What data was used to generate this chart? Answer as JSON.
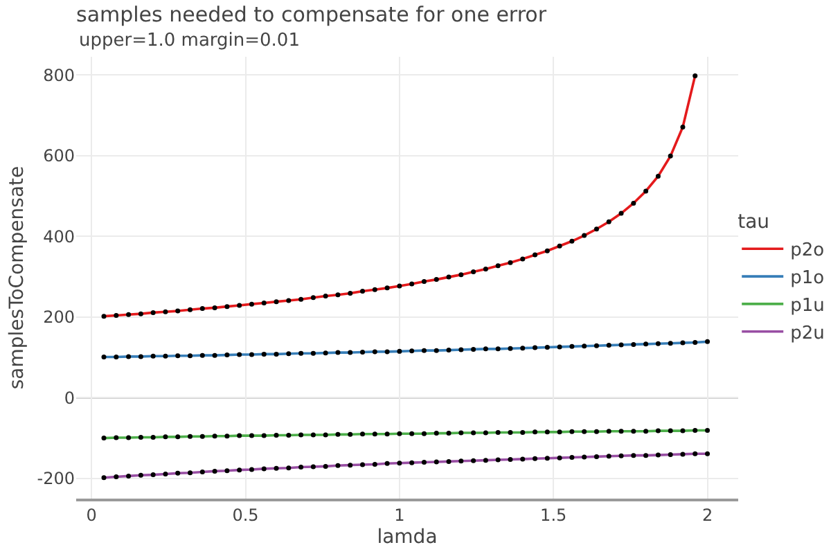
{
  "chart_data": {
    "type": "line",
    "title": "samples needed to compensate for one error",
    "subtitle": "upper=1.0 margin=0.01",
    "xlabel": "lamda",
    "ylabel": "samplesToCompensate",
    "legend_title": "tau",
    "x": [
      0.04,
      0.08,
      0.12,
      0.16,
      0.2,
      0.24,
      0.28,
      0.32,
      0.36,
      0.4,
      0.44,
      0.48,
      0.52,
      0.56,
      0.6,
      0.64,
      0.68,
      0.72,
      0.76,
      0.8,
      0.84,
      0.88,
      0.92,
      0.96,
      1,
      1.04,
      1.08,
      1.12,
      1.16,
      1.2,
      1.24,
      1.28,
      1.32,
      1.36,
      1.4,
      1.44,
      1.48,
      1.52,
      1.56,
      1.6,
      1.64,
      1.68,
      1.72,
      1.76,
      1.8,
      1.84,
      1.88,
      1.92,
      1.96,
      2
    ],
    "series": [
      {
        "name": "p2o",
        "color": "#e41a1c",
        "values": [
          202,
          204,
          206,
          208,
          211,
          213,
          215,
          218,
          221,
          223,
          226,
          229,
          232,
          235,
          238,
          241,
          244,
          248,
          252,
          255,
          259,
          264,
          268,
          272,
          277,
          282,
          288,
          293,
          299,
          305,
          312,
          319,
          327,
          335,
          344,
          354,
          364,
          376,
          388,
          402,
          418,
          436,
          457,
          482,
          512,
          549,
          599,
          671,
          798,
          null
        ]
      },
      {
        "name": "p1o",
        "color": "#377eb8",
        "values": [
          101,
          101,
          102,
          102,
          103,
          103,
          104,
          104,
          105,
          105,
          106,
          107,
          107,
          108,
          108,
          109,
          110,
          110,
          111,
          112,
          112,
          113,
          114,
          114,
          115,
          116,
          117,
          117,
          118,
          119,
          120,
          121,
          121,
          122,
          123,
          124,
          125,
          126,
          127,
          128,
          129,
          130,
          131,
          132,
          133,
          134,
          135,
          136,
          137,
          139
        ]
      },
      {
        "name": "p1u",
        "color": "#4daf4a",
        "values": [
          -100,
          -99,
          -99,
          -98,
          -98,
          -97,
          -97,
          -96,
          -96,
          -95,
          -95,
          -94,
          -94,
          -94,
          -93,
          -93,
          -92,
          -92,
          -92,
          -91,
          -91,
          -90,
          -90,
          -90,
          -89,
          -89,
          -89,
          -88,
          -88,
          -87,
          -87,
          -87,
          -86,
          -86,
          -86,
          -85,
          -85,
          -85,
          -84,
          -84,
          -84,
          -83,
          -83,
          -83,
          -83,
          -82,
          -82,
          -82,
          -81,
          -81
        ]
      },
      {
        "name": "p2u",
        "color": "#984ea3",
        "values": [
          -198,
          -196,
          -194,
          -192,
          -191,
          -189,
          -187,
          -186,
          -184,
          -182,
          -181,
          -179,
          -178,
          -176,
          -175,
          -174,
          -172,
          -171,
          -170,
          -168,
          -167,
          -166,
          -165,
          -163,
          -162,
          -161,
          -160,
          -159,
          -158,
          -157,
          -156,
          -155,
          -154,
          -153,
          -152,
          -151,
          -150,
          -149,
          -148,
          -147,
          -146,
          -145,
          -144,
          -143,
          -143,
          -142,
          -141,
          -140,
          -139,
          -139
        ]
      }
    ],
    "xlim": [
      -0.05,
      2.1
    ],
    "ylim": [
      -250,
      845
    ],
    "xticks": [
      0,
      0.5,
      1,
      1.5,
      2
    ],
    "yticks": [
      -200,
      0,
      200,
      400,
      600,
      800
    ],
    "grid": true,
    "legend": "right",
    "marker": "circle",
    "line_style": "solid",
    "ref_lines": [
      {
        "axis": "y",
        "value": 0,
        "color": "#444444"
      }
    ]
  }
}
